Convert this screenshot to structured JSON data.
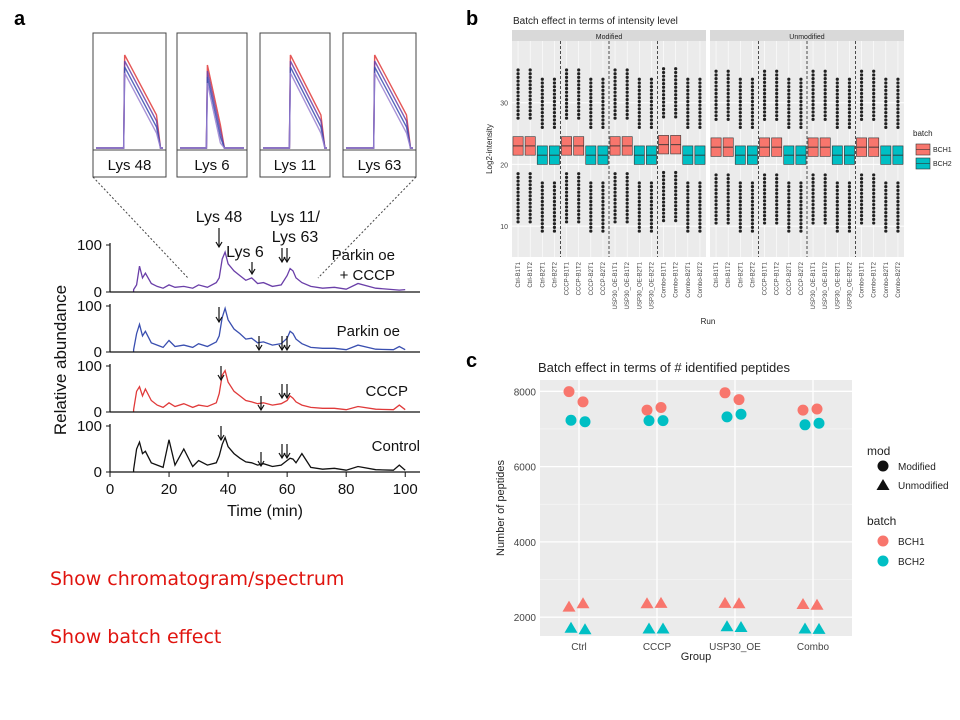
{
  "labels": {
    "a": "a",
    "b": "b",
    "c": "c",
    "note1": "Show chromatogram/spectrum",
    "note2": "Show batch effect"
  },
  "colors": {
    "bch1": "#f8766d",
    "bch2": "#00bfc4",
    "note": "#e0140f"
  },
  "chart_data": [
    {
      "type": "line",
      "panel": "a",
      "xlabel": "Time (min)",
      "ylabel": "Relative abundance",
      "xlim": [
        0,
        105
      ],
      "xticks": [
        0,
        20,
        40,
        60,
        80,
        100
      ],
      "yticks": [
        0,
        100
      ],
      "series": [
        {
          "name": "Parkin oe\n+ CCCP",
          "color": "#6a3fa8",
          "x": [
            8,
            9,
            10,
            11,
            12,
            14,
            16,
            18,
            20,
            22,
            25,
            28,
            30,
            33,
            36,
            37,
            38,
            39,
            40,
            42,
            44,
            46,
            48,
            50,
            52,
            55,
            58,
            60,
            61,
            62,
            63,
            65,
            68,
            72,
            76,
            80,
            84,
            90,
            96,
            98,
            100
          ],
          "y": [
            5,
            15,
            55,
            30,
            40,
            18,
            12,
            8,
            15,
            10,
            12,
            8,
            15,
            10,
            20,
            30,
            70,
            85,
            60,
            45,
            35,
            25,
            30,
            18,
            20,
            12,
            15,
            35,
            50,
            45,
            30,
            20,
            12,
            8,
            10,
            6,
            18,
            8,
            5,
            4,
            5
          ]
        },
        {
          "name": "Parkin oe",
          "color": "#3a4fb0",
          "x": [
            8,
            9,
            10,
            11,
            12,
            14,
            16,
            18,
            20,
            22,
            25,
            28,
            30,
            33,
            36,
            37,
            38,
            39,
            40,
            42,
            44,
            46,
            48,
            50,
            52,
            55,
            58,
            60,
            61,
            62,
            63,
            65,
            68,
            72,
            76,
            80,
            84,
            90,
            96,
            98,
            100
          ],
          "y": [
            5,
            40,
            60,
            35,
            45,
            20,
            15,
            10,
            25,
            12,
            15,
            10,
            18,
            12,
            22,
            35,
            75,
            95,
            70,
            50,
            40,
            28,
            30,
            20,
            22,
            15,
            18,
            30,
            45,
            40,
            28,
            18,
            10,
            8,
            8,
            5,
            15,
            6,
            5,
            12,
            5
          ]
        },
        {
          "name": "CCCP",
          "color": "#e03a3a",
          "x": [
            8,
            9,
            10,
            11,
            12,
            14,
            16,
            18,
            20,
            22,
            25,
            28,
            30,
            33,
            36,
            37,
            38,
            39,
            40,
            42,
            44,
            46,
            48,
            50,
            52,
            55,
            58,
            60,
            61,
            62,
            63,
            65,
            68,
            72,
            76,
            80,
            84,
            90,
            96,
            98,
            100
          ],
          "y": [
            5,
            45,
            55,
            35,
            50,
            25,
            15,
            10,
            20,
            12,
            18,
            10,
            15,
            12,
            20,
            40,
            80,
            90,
            65,
            45,
            35,
            25,
            22,
            18,
            20,
            15,
            18,
            25,
            35,
            30,
            22,
            15,
            10,
            8,
            8,
            5,
            12,
            6,
            5,
            15,
            5
          ]
        },
        {
          "name": "Control",
          "color": "#111111",
          "x": [
            8,
            9,
            10,
            11,
            12,
            14,
            16,
            18,
            20,
            22,
            25,
            28,
            30,
            33,
            36,
            37,
            38,
            39,
            40,
            42,
            44,
            46,
            48,
            50,
            52,
            55,
            58,
            60,
            61,
            62,
            63,
            65,
            68,
            72,
            76,
            80,
            84,
            90,
            96,
            98,
            100
          ],
          "y": [
            5,
            50,
            65,
            40,
            45,
            20,
            15,
            10,
            70,
            15,
            50,
            12,
            25,
            15,
            20,
            35,
            60,
            75,
            55,
            40,
            30,
            22,
            20,
            15,
            18,
            12,
            15,
            25,
            30,
            28,
            20,
            40,
            10,
            6,
            8,
            4,
            12,
            5,
            4,
            15,
            4
          ]
        }
      ],
      "annotations": [
        "Lys 48",
        "Lys 6",
        "Lys 11/\nLys 63"
      ],
      "insets": [
        "Lys 48",
        "Lys 6",
        "Lys 11",
        "Lys 63"
      ]
    },
    {
      "type": "boxplot",
      "panel": "b",
      "title": "Batch effect in terms of intensity level",
      "xlabel": "Run",
      "ylabel": "Log2-intensity",
      "ylim": [
        5,
        40
      ],
      "yticks": [
        10,
        20,
        30
      ],
      "facets": [
        "Modified",
        "Unmodified"
      ],
      "categories": [
        "Ctrl-B1T1",
        "Ctrl-B1T2",
        "Ctrl-B2T1",
        "Ctrl-B2T2",
        "CCCP-B1T1",
        "CCCP-B1T2",
        "CCCP-B2T1",
        "CCCP-B2T2",
        "USP30_OE-B1T1",
        "USP30_OE-B1T2",
        "USP30_OE-B2T1",
        "USP30_OE-B2T2",
        "Combo-B1T1",
        "Combo-B1T2",
        "Combo-B2T1",
        "Combo-B2T2"
      ],
      "medians": {
        "Modified": [
          23,
          23,
          21.5,
          21.5,
          23,
          23,
          21.5,
          21.5,
          23,
          23,
          21.5,
          21.5,
          23.2,
          23.2,
          21.5,
          21.5
        ],
        "Unmodified": [
          22.8,
          22.8,
          21.5,
          21.5,
          22.8,
          22.8,
          21.5,
          21.5,
          22.8,
          22.8,
          21.5,
          21.5,
          22.8,
          22.8,
          21.5,
          21.5
        ]
      },
      "legend_title": "batch",
      "legend": [
        "BCH1",
        "BCH2"
      ],
      "legend_position": "right"
    },
    {
      "type": "scatter",
      "panel": "c",
      "title": "Batch effect in terms of # identified peptides",
      "xlabel": "Group",
      "ylabel": "Number of peptides",
      "categories": [
        "Ctrl",
        "CCCP",
        "USP30_OE",
        "Combo"
      ],
      "ylim": [
        1500,
        8300
      ],
      "yticks": [
        2000,
        4000,
        6000,
        8000
      ],
      "points": {
        "Modified": {
          "BCH1": [
            [
              7990,
              7720
            ],
            [
              7500,
              7570
            ],
            [
              7960,
              7780
            ],
            [
              7500,
              7530
            ]
          ],
          "BCH2": [
            [
              7230,
              7190
            ],
            [
              7220,
              7220
            ],
            [
              7320,
              7390
            ],
            [
              7110,
              7150
            ]
          ]
        },
        "Unmodified": {
          "BCH1": [
            [
              2280,
              2370
            ],
            [
              2370,
              2380
            ],
            [
              2380,
              2370
            ],
            [
              2350,
              2330
            ]
          ],
          "BCH2": [
            [
              1720,
              1680
            ],
            [
              1700,
              1700
            ],
            [
              1760,
              1740
            ],
            [
              1700,
              1690
            ]
          ]
        }
      },
      "legend_groups": [
        {
          "title": "mod",
          "items": [
            "Modified",
            "Unmodified"
          ]
        },
        {
          "title": "batch",
          "items": [
            "BCH1",
            "BCH2"
          ]
        }
      ],
      "legend_position": "right"
    }
  ]
}
